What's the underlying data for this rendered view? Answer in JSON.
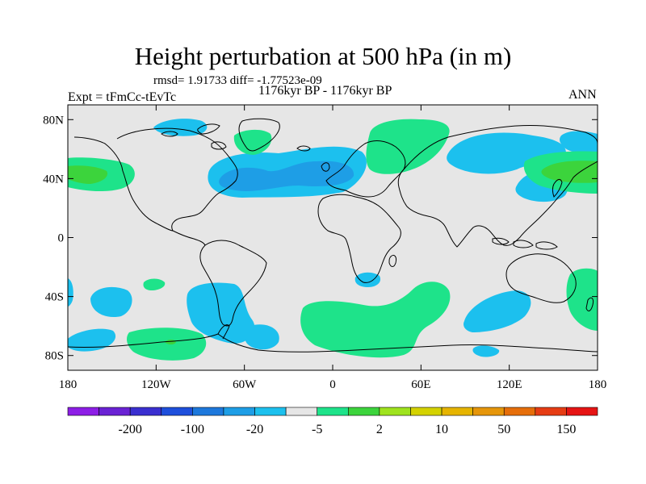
{
  "title": "Height perturbation at 500 hPa (in m)",
  "stats": "rmsd= 1.91733 diff= -1.77523e-09",
  "period": "1176kyr BP - 1176kyr BP",
  "experiment": "Expt = tFmCc-tEvTc",
  "season": "ANN",
  "map": {
    "projection": "cylindrical equidistant",
    "lon_range": [
      -180,
      180
    ],
    "lat_range": [
      -90,
      90
    ],
    "x_ticks": [
      {
        "value": -180,
        "label": "180"
      },
      {
        "value": -120,
        "label": "120W"
      },
      {
        "value": -60,
        "label": "60W"
      },
      {
        "value": 0,
        "label": "0"
      },
      {
        "value": 60,
        "label": "60E"
      },
      {
        "value": 120,
        "label": "120E"
      },
      {
        "value": 180,
        "label": "180"
      }
    ],
    "y_ticks": [
      {
        "value": 80,
        "label": "80N"
      },
      {
        "value": 40,
        "label": "40N"
      },
      {
        "value": 0,
        "label": "0"
      },
      {
        "value": -40,
        "label": "40S"
      },
      {
        "value": -80,
        "label": "80S"
      }
    ],
    "background_color": "#e6e6e6",
    "coast_color": "#000000"
  },
  "colorbar": {
    "colors": [
      "#8d1ee6",
      "#6a22d4",
      "#3a2fd0",
      "#1e4fdc",
      "#1d78dc",
      "#1e9ee6",
      "#1cc0ee",
      "#e6e6e6",
      "#1ee38a",
      "#3cd43c",
      "#9fe31e",
      "#d4d200",
      "#e6b400",
      "#e6960a",
      "#e66e0a",
      "#e63c14",
      "#e61414"
    ],
    "labels": [
      {
        "after_index": 1,
        "text": "-200"
      },
      {
        "after_index": 3,
        "text": "-100"
      },
      {
        "after_index": 5,
        "text": "-20"
      },
      {
        "after_index": 7,
        "text": "-5"
      },
      {
        "after_index": 9,
        "text": "2"
      },
      {
        "after_index": 11,
        "text": "10"
      },
      {
        "after_index": 13,
        "text": "50"
      },
      {
        "after_index": 15,
        "text": "150"
      }
    ]
  }
}
